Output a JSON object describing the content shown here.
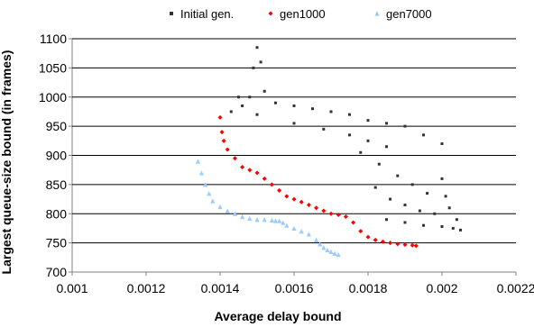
{
  "chart_data": {
    "type": "scatter",
    "title": "",
    "xlabel": "Average delay bound",
    "ylabel": "Largest queue-size bound (in frames)",
    "xlim": [
      0.001,
      0.0022
    ],
    "ylim": [
      700,
      1100
    ],
    "x_ticks": [
      "0.001",
      "0.0012",
      "0.0014",
      "0.0016",
      "0.0018",
      "0.002",
      "0.0022"
    ],
    "y_ticks": [
      "700",
      "750",
      "800",
      "850",
      "900",
      "950",
      "1000",
      "1050",
      "1100"
    ],
    "grid": "horizontal",
    "legend_position": "top",
    "series": [
      {
        "name": "Initial gen.",
        "color": "#333333",
        "marker": "square",
        "points": [
          [
            0.00148,
            1000
          ],
          [
            0.00149,
            1050
          ],
          [
            0.0015,
            1085
          ],
          [
            0.00151,
            1060
          ],
          [
            0.00152,
            1010
          ],
          [
            0.0015,
            970
          ],
          [
            0.00146,
            985
          ],
          [
            0.00143,
            975
          ],
          [
            0.00145,
            1000
          ],
          [
            0.00155,
            990
          ],
          [
            0.0016,
            985
          ],
          [
            0.00165,
            980
          ],
          [
            0.0017,
            975
          ],
          [
            0.00175,
            970
          ],
          [
            0.0018,
            960
          ],
          [
            0.00185,
            955
          ],
          [
            0.0019,
            950
          ],
          [
            0.00195,
            935
          ],
          [
            0.002,
            920
          ],
          [
            0.0016,
            955
          ],
          [
            0.00168,
            945
          ],
          [
            0.00175,
            935
          ],
          [
            0.0018,
            925
          ],
          [
            0.00185,
            915
          ],
          [
            0.00178,
            905
          ],
          [
            0.00183,
            885
          ],
          [
            0.00188,
            865
          ],
          [
            0.00192,
            850
          ],
          [
            0.00196,
            835
          ],
          [
            0.00182,
            845
          ],
          [
            0.00186,
            825
          ],
          [
            0.0019,
            815
          ],
          [
            0.00194,
            805
          ],
          [
            0.00198,
            800
          ],
          [
            0.00185,
            790
          ],
          [
            0.0019,
            785
          ],
          [
            0.00195,
            780
          ],
          [
            0.002,
            778
          ],
          [
            0.00203,
            775
          ],
          [
            0.00205,
            772
          ],
          [
            0.00204,
            790
          ],
          [
            0.00202,
            810
          ],
          [
            0.00201,
            830
          ],
          [
            0.002,
            860
          ]
        ]
      },
      {
        "name": "gen1000",
        "color": "#ff0000",
        "marker": "diamond",
        "points": [
          [
            0.0014,
            965
          ],
          [
            0.001405,
            940
          ],
          [
            0.00141,
            925
          ],
          [
            0.00142,
            910
          ],
          [
            0.00144,
            895
          ],
          [
            0.00146,
            880
          ],
          [
            0.00148,
            875
          ],
          [
            0.0015,
            870
          ],
          [
            0.00152,
            860
          ],
          [
            0.00154,
            850
          ],
          [
            0.00156,
            840
          ],
          [
            0.00158,
            830
          ],
          [
            0.0016,
            825
          ],
          [
            0.00162,
            820
          ],
          [
            0.00164,
            815
          ],
          [
            0.00166,
            810
          ],
          [
            0.00168,
            805
          ],
          [
            0.0017,
            800
          ],
          [
            0.00172,
            798
          ],
          [
            0.00174,
            795
          ],
          [
            0.00176,
            785
          ],
          [
            0.00178,
            770
          ],
          [
            0.0018,
            760
          ],
          [
            0.00182,
            755
          ],
          [
            0.00184,
            752
          ],
          [
            0.00186,
            750
          ],
          [
            0.00188,
            748
          ],
          [
            0.0019,
            747
          ],
          [
            0.00192,
            746
          ],
          [
            0.00193,
            745
          ]
        ]
      },
      {
        "name": "gen7000",
        "color": "#99ccff",
        "marker": "triangle",
        "points": [
          [
            0.00134,
            890
          ],
          [
            0.00135,
            870
          ],
          [
            0.00136,
            850
          ],
          [
            0.00137,
            835
          ],
          [
            0.00138,
            822
          ],
          [
            0.0014,
            812
          ],
          [
            0.00142,
            805
          ],
          [
            0.00144,
            800
          ],
          [
            0.00146,
            795
          ],
          [
            0.00148,
            792
          ],
          [
            0.0015,
            790
          ],
          [
            0.00152,
            790
          ],
          [
            0.00154,
            789
          ],
          [
            0.00155,
            788
          ],
          [
            0.00156,
            788
          ],
          [
            0.00157,
            785
          ],
          [
            0.00158,
            780
          ],
          [
            0.0016,
            775
          ],
          [
            0.00162,
            770
          ],
          [
            0.00164,
            765
          ],
          [
            0.00166,
            755
          ],
          [
            0.00167,
            748
          ],
          [
            0.00168,
            742
          ],
          [
            0.00169,
            738
          ],
          [
            0.0017,
            735
          ],
          [
            0.00171,
            732
          ],
          [
            0.00172,
            730
          ]
        ]
      }
    ]
  }
}
